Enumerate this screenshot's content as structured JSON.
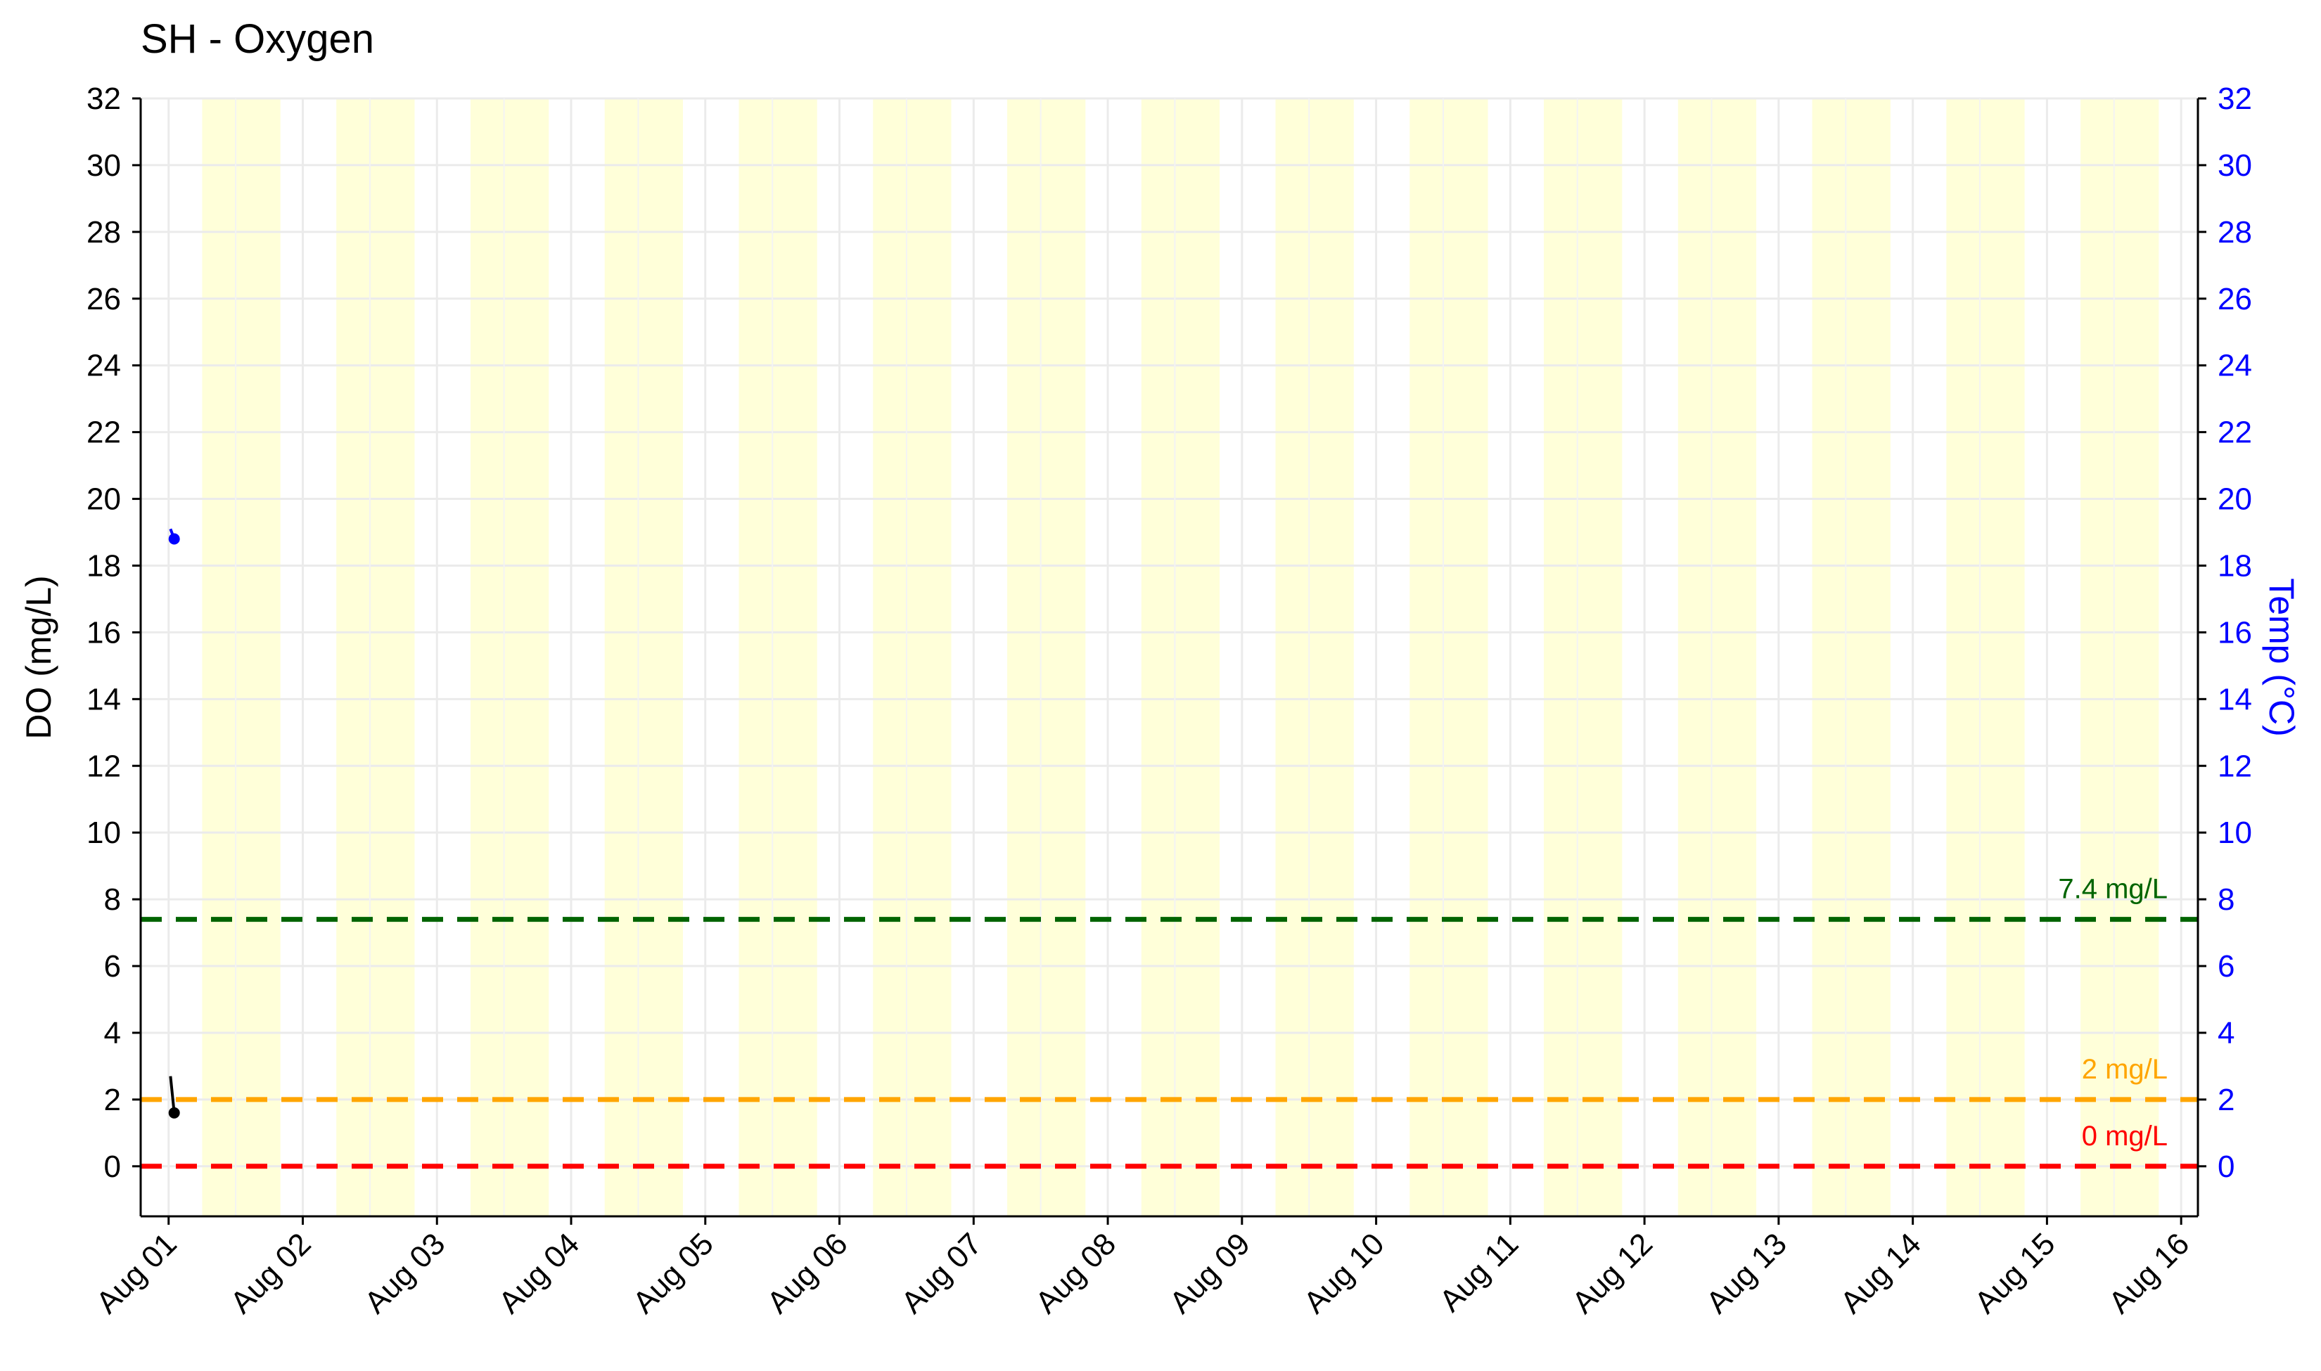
{
  "chart_data": {
    "type": "line",
    "title": "SH - Oxygen",
    "ylabel": "DO (mg/L)",
    "y2label": "Temp (°C)",
    "ylim": [
      -1.5,
      32
    ],
    "y2lim": [
      -1.5,
      32
    ],
    "yticks": [
      "0",
      "2",
      "4",
      "6",
      "8",
      "10",
      "12",
      "14",
      "16",
      "18",
      "20",
      "22",
      "24",
      "26",
      "28",
      "30",
      "32"
    ],
    "y2ticks": [
      "0",
      "2",
      "4",
      "6",
      "8",
      "10",
      "12",
      "14",
      "16",
      "18",
      "20",
      "22",
      "24",
      "26",
      "28",
      "30",
      "32"
    ],
    "xlim": [
      "2023-07-31T19:00",
      "2023-08-16T03:00"
    ],
    "xticks": [
      "Aug 01",
      "Aug 02",
      "Aug 03",
      "Aug 04",
      "Aug 05",
      "Aug 06",
      "Aug 07",
      "Aug 08",
      "Aug 09",
      "Aug 10",
      "Aug 11",
      "Aug 12",
      "Aug 13",
      "Aug 14",
      "Aug 15",
      "Aug 16"
    ],
    "grid": true,
    "shading": {
      "description": "daytime periods",
      "color": "#ffffd9",
      "spans": [
        [
          "2023-08-01T06:00",
          "2023-08-01T20:00"
        ],
        [
          "2023-08-02T06:00",
          "2023-08-02T20:00"
        ],
        [
          "2023-08-03T06:00",
          "2023-08-03T20:00"
        ],
        [
          "2023-08-04T06:00",
          "2023-08-04T20:00"
        ],
        [
          "2023-08-05T06:00",
          "2023-08-05T20:00"
        ],
        [
          "2023-08-06T06:00",
          "2023-08-06T20:00"
        ],
        [
          "2023-08-07T06:00",
          "2023-08-07T20:00"
        ],
        [
          "2023-08-08T06:00",
          "2023-08-08T20:00"
        ],
        [
          "2023-08-09T06:00",
          "2023-08-09T20:00"
        ],
        [
          "2023-08-10T06:00",
          "2023-08-10T20:00"
        ],
        [
          "2023-08-11T06:00",
          "2023-08-11T20:00"
        ],
        [
          "2023-08-12T06:00",
          "2023-08-12T20:00"
        ],
        [
          "2023-08-13T06:00",
          "2023-08-13T20:00"
        ],
        [
          "2023-08-14T06:00",
          "2023-08-14T20:00"
        ],
        [
          "2023-08-15T06:00",
          "2023-08-15T20:00"
        ]
      ]
    },
    "reference_lines": [
      {
        "label": "7.4 mg/L",
        "value": 7.4,
        "color": "#006400"
      },
      {
        "label": "2 mg/L",
        "value": 2,
        "color": "#FFA500"
      },
      {
        "label": "0 mg/L",
        "value": 0,
        "color": "#FF0000"
      }
    ],
    "series": [
      {
        "axis": "left",
        "color": "#000000",
        "x": [
          "2023-08-01T00:20",
          "2023-08-01T01:00"
        ],
        "y": [
          2.7,
          1.6
        ]
      },
      {
        "axis": "right",
        "color": "#0000FF",
        "x": [
          "2023-08-01T00:20",
          "2023-08-01T01:00"
        ],
        "y": [
          19.1,
          18.8
        ]
      }
    ]
  }
}
